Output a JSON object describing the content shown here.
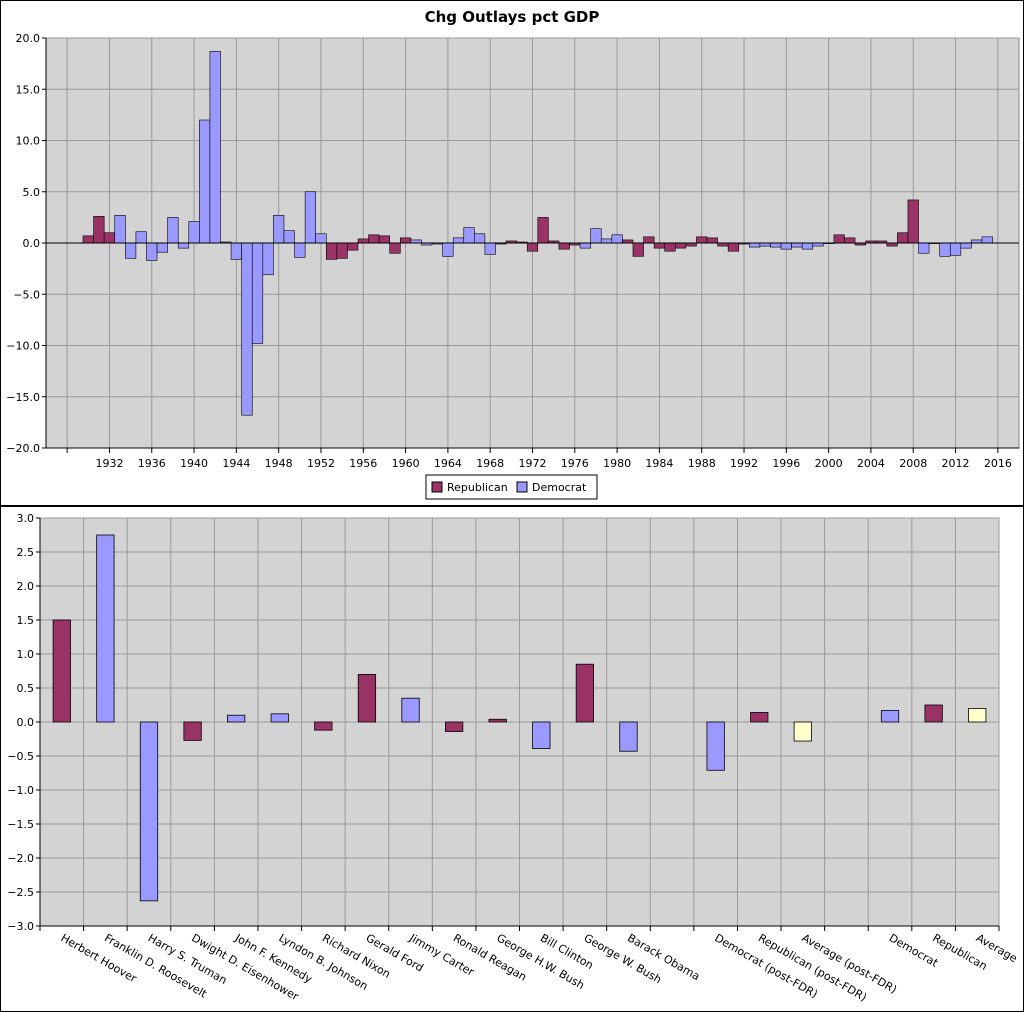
{
  "chart_data": [
    {
      "type": "bar",
      "title": "Chg Outlays pct GDP",
      "ylim": [
        -20,
        20
      ],
      "yticks": [
        "20.0",
        "15.0",
        "10.0",
        "5.0",
        "0.0",
        "−5.0",
        "−10.0",
        "−15.0",
        "−20.0"
      ],
      "ytick_values": [
        20,
        15,
        10,
        5,
        0,
        -5,
        -10,
        -15,
        -20
      ],
      "xticks": [
        "1932",
        "1936",
        "1940",
        "1944",
        "1948",
        "1952",
        "1956",
        "1960",
        "1964",
        "1968",
        "1972",
        "1976",
        "1980",
        "1984",
        "1988",
        "1992",
        "1996",
        "2000",
        "2004",
        "2008",
        "2012",
        "2016"
      ],
      "grid": true,
      "legend_position": "bottom",
      "series": [
        {
          "name": "Republican",
          "color": "#993366"
        },
        {
          "name": "Democrat",
          "color": "#9999ff"
        }
      ],
      "x": [
        1930,
        1931,
        1932,
        1933,
        1934,
        1935,
        1936,
        1937,
        1938,
        1939,
        1940,
        1941,
        1942,
        1943,
        1944,
        1945,
        1946,
        1947,
        1948,
        1949,
        1950,
        1951,
        1952,
        1953,
        1954,
        1955,
        1956,
        1957,
        1958,
        1959,
        1960,
        1961,
        1962,
        1963,
        1964,
        1965,
        1966,
        1967,
        1968,
        1969,
        1970,
        1971,
        1972,
        1973,
        1974,
        1975,
        1976,
        1977,
        1978,
        1979,
        1980,
        1981,
        1982,
        1983,
        1984,
        1985,
        1986,
        1987,
        1988,
        1989,
        1990,
        1991,
        1992,
        1993,
        1994,
        1995,
        1996,
        1997,
        1998,
        1999,
        2000,
        2001,
        2002,
        2003,
        2004,
        2005,
        2006,
        2007,
        2008,
        2009,
        2010,
        2011,
        2012,
        2013,
        2014,
        2015
      ],
      "party": [
        "R",
        "R",
        "R",
        "D",
        "D",
        "D",
        "D",
        "D",
        "D",
        "D",
        "D",
        "D",
        "D",
        "D",
        "D",
        "D",
        "D",
        "D",
        "D",
        "D",
        "D",
        "D",
        "D",
        "R",
        "R",
        "R",
        "R",
        "R",
        "R",
        "R",
        "R",
        "D",
        "D",
        "D",
        "D",
        "D",
        "D",
        "D",
        "D",
        "R",
        "R",
        "R",
        "R",
        "R",
        "R",
        "R",
        "R",
        "D",
        "D",
        "D",
        "D",
        "R",
        "R",
        "R",
        "R",
        "R",
        "R",
        "R",
        "R",
        "R",
        "R",
        "R",
        "R",
        "D",
        "D",
        "D",
        "D",
        "D",
        "D",
        "D",
        "D",
        "R",
        "R",
        "R",
        "R",
        "R",
        "R",
        "R",
        "R",
        "D",
        "D",
        "D",
        "D",
        "D",
        "D",
        "D"
      ],
      "values": [
        0.7,
        2.6,
        1.0,
        2.7,
        -1.5,
        1.1,
        -1.7,
        -0.9,
        2.5,
        -0.5,
        2.1,
        12.0,
        18.7,
        0.1,
        -1.6,
        -16.8,
        -9.8,
        -3.1,
        2.7,
        1.2,
        -1.4,
        5.0,
        0.9,
        -1.6,
        -1.5,
        -0.7,
        0.4,
        0.8,
        0.7,
        -1.0,
        0.5,
        0.3,
        -0.2,
        -0.1,
        -1.3,
        0.5,
        1.5,
        0.9,
        -1.1,
        -0.1,
        0.2,
        0.1,
        -0.8,
        2.5,
        0.2,
        -0.6,
        -0.2,
        -0.5,
        1.4,
        0.4,
        0.8,
        0.3,
        -1.3,
        0.6,
        -0.5,
        -0.8,
        -0.5,
        -0.3,
        0.6,
        0.5,
        -0.3,
        -0.8,
        -0.1,
        -0.4,
        -0.3,
        -0.4,
        -0.6,
        -0.4,
        -0.6,
        -0.3,
        0.0,
        0.8,
        0.5,
        -0.2,
        0.2,
        0.2,
        -0.3,
        1.0,
        4.2,
        -1.0,
        0.0,
        -1.3,
        -1.2,
        -0.5,
        0.3,
        0.6
      ]
    },
    {
      "type": "bar",
      "ylim": [
        -3,
        3
      ],
      "yticks": [
        "3.0",
        "2.5",
        "2.0",
        "1.5",
        "1.0",
        "0.5",
        "0.0",
        "−0.5",
        "−1.0",
        "−1.5",
        "−2.0",
        "−2.5",
        "−3.0"
      ],
      "ytick_values": [
        3,
        2.5,
        2,
        1.5,
        1,
        0.5,
        0,
        -0.5,
        -1,
        -1.5,
        -2,
        -2.5,
        -3
      ],
      "grid": true,
      "colors": {
        "Republican": "#993366",
        "Democrat": "#9999ff",
        "Average": "#ffffcc"
      },
      "categories": [
        "Herbert Hoover",
        "Franklin D. Roosevelt",
        "Harry S. Truman",
        "Dwight D. Eisenhower",
        "John F. Kennedy",
        "Lyndon B. Johnson",
        "Richard Nixon",
        "Gerald Ford",
        "Jimmy Carter",
        "Ronald Reagan",
        "George H.W. Bush",
        "Bill Clinton",
        "George W. Bush",
        "Barack Obama",
        "",
        "Democrat (post-FDR)",
        "Republican (post-FDR)",
        "Average (post-FDR)",
        "",
        "Democrat",
        "Republican",
        "Average"
      ],
      "groups": [
        "Republican",
        "Democrat",
        "Democrat",
        "Republican",
        "Democrat",
        "Democrat",
        "Republican",
        "Republican",
        "Democrat",
        "Republican",
        "Republican",
        "Democrat",
        "Republican",
        "Democrat",
        "",
        "Democrat",
        "Republican",
        "Average",
        "",
        "Democrat",
        "Republican",
        "Average"
      ],
      "values": [
        1.5,
        2.75,
        -2.63,
        -0.27,
        0.1,
        0.12,
        -0.12,
        0.7,
        0.35,
        -0.14,
        0.04,
        -0.39,
        0.85,
        -0.43,
        0.0,
        -0.71,
        0.14,
        -0.28,
        0.0,
        0.17,
        0.25,
        0.2
      ]
    }
  ]
}
